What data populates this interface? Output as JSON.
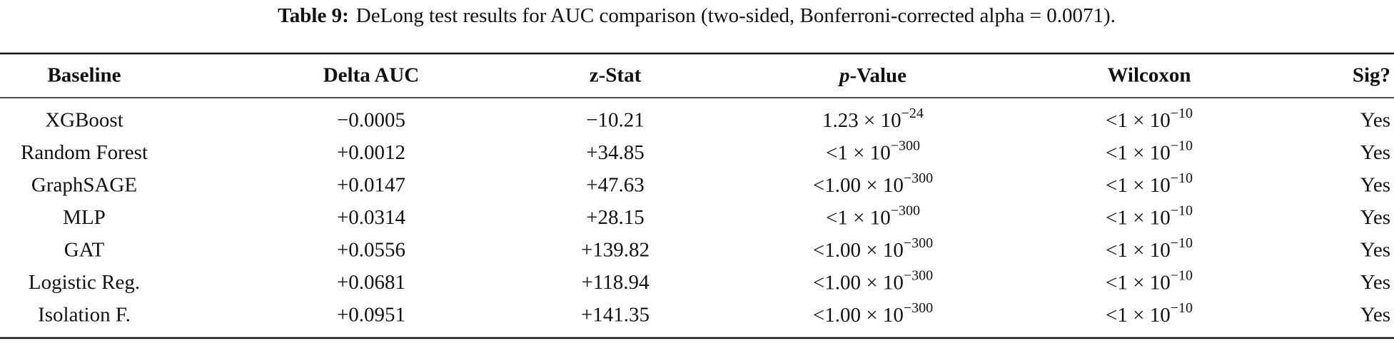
{
  "caption": {
    "label": "Table 9:",
    "text": "DeLong test results for AUC comparison (two-sided, Bonferroni-corrected alpha = 0.0071)."
  },
  "table": {
    "headers": [
      "Baseline",
      "Delta AUC",
      "z-Stat",
      {
        "var": "p",
        "rest": "-Value"
      },
      "Wilcoxon",
      "Sig?"
    ],
    "rows": [
      {
        "baseline": "XGBoost",
        "delta": "−0.0005",
        "z": "−10.21",
        "p": {
          "base": "1.23 × 10",
          "exp": "−24"
        },
        "wilcoxon": {
          "base": "<1 × 10",
          "exp": "−10"
        },
        "sig": "Yes"
      },
      {
        "baseline": "Random Forest",
        "delta": "+0.0012",
        "z": "+34.85",
        "p": {
          "base": "<1 × 10",
          "exp": "−300"
        },
        "wilcoxon": {
          "base": "<1 × 10",
          "exp": "−10"
        },
        "sig": "Yes"
      },
      {
        "baseline": "GraphSAGE",
        "delta": "+0.0147",
        "z": "+47.63",
        "p": {
          "base": "<1.00 × 10",
          "exp": "−300"
        },
        "wilcoxon": {
          "base": "<1 × 10",
          "exp": "−10"
        },
        "sig": "Yes"
      },
      {
        "baseline": "MLP",
        "delta": "+0.0314",
        "z": "+28.15",
        "p": {
          "base": "<1 × 10",
          "exp": "−300"
        },
        "wilcoxon": {
          "base": "<1 × 10",
          "exp": "−10"
        },
        "sig": "Yes"
      },
      {
        "baseline": "GAT",
        "delta": "+0.0556",
        "z": "+139.82",
        "p": {
          "base": "<1.00 × 10",
          "exp": "−300"
        },
        "wilcoxon": {
          "base": "<1 × 10",
          "exp": "−10"
        },
        "sig": "Yes"
      },
      {
        "baseline": "Logistic Reg.",
        "delta": "+0.0681",
        "z": "+118.94",
        "p": {
          "base": "<1.00 × 10",
          "exp": "−300"
        },
        "wilcoxon": {
          "base": "<1 × 10",
          "exp": "−10"
        },
        "sig": "Yes"
      },
      {
        "baseline": "Isolation F.",
        "delta": "+0.0951",
        "z": "+141.35",
        "p": {
          "base": "<1.00 × 10",
          "exp": "−300"
        },
        "wilcoxon": {
          "base": "<1 × 10",
          "exp": "−10"
        },
        "sig": "Yes"
      }
    ]
  }
}
